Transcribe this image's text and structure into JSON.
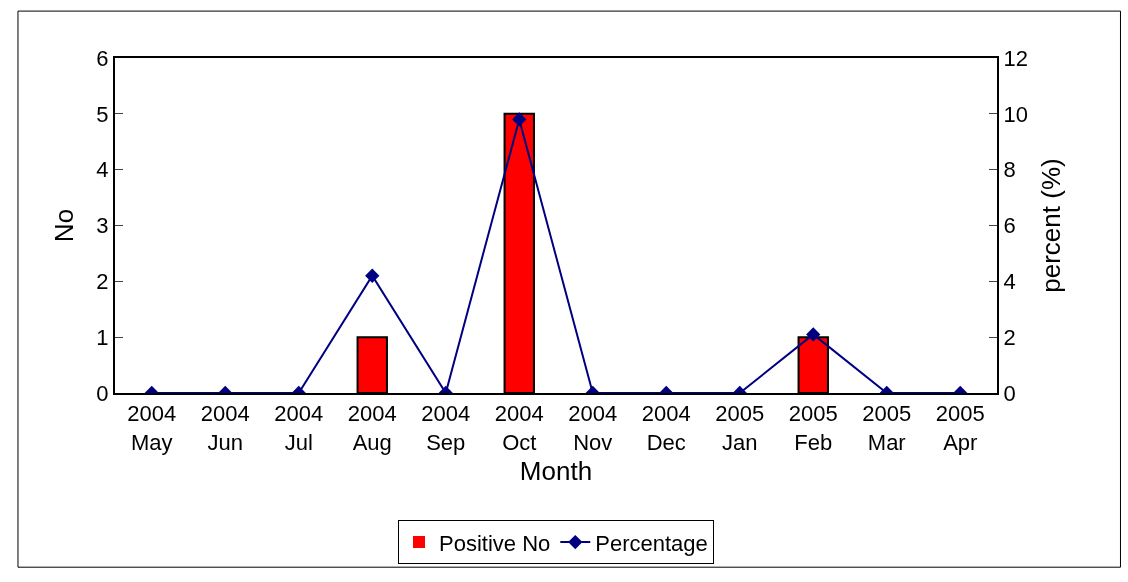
{
  "chart_data": {
    "type": "bar",
    "xlabel": "Month",
    "ylabel": "No",
    "y2label": "percent (%)",
    "categories": [
      "2004\nMay",
      "2004\nJun",
      "2004\nJul",
      "2004\nAug",
      "2004\nSep",
      "2004\nOct",
      "2004\nNov",
      "2004\nDec",
      "2005\nJan",
      "2005\nFeb",
      "2005\nMar",
      "2005\nApr"
    ],
    "series": [
      {
        "name": "Positive No",
        "color": "#ff0000",
        "values": [
          0,
          0,
          0,
          1,
          0,
          5,
          0,
          0,
          0,
          1,
          0,
          0
        ]
      },
      {
        "name": "Percentage",
        "type": "line",
        "axis": "y2",
        "color": "#000080",
        "marker": "diamond",
        "values": [
          0,
          0,
          0,
          4.2,
          0,
          9.8,
          0,
          0,
          0,
          2.1,
          0,
          0
        ]
      }
    ],
    "ylim": [
      0,
      6
    ],
    "yticks": [
      0,
      1,
      2,
      3,
      4,
      5,
      6
    ],
    "y2lim": [
      0,
      12
    ],
    "y2ticks": [
      0,
      2,
      4,
      6,
      8,
      10,
      12
    ],
    "legend": "bottom"
  }
}
